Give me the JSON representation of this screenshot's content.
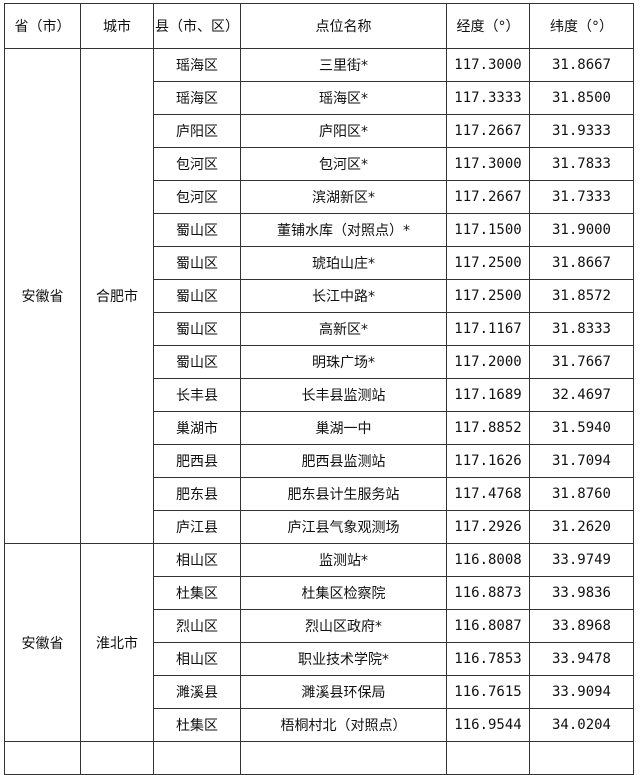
{
  "headers": [
    "省（市）",
    "城市",
    "县（市、区）",
    "点位名称",
    "经度（°）",
    "纬度（°）"
  ],
  "groups": [
    {
      "province": "安徽省",
      "city": "合肥市",
      "rows": [
        [
          "瑶海区",
          "三里街*",
          "117.3000",
          "31.8667"
        ],
        [
          "瑶海区",
          "瑶海区*",
          "117.3333",
          "31.8500"
        ],
        [
          "庐阳区",
          "庐阳区*",
          "117.2667",
          "31.9333"
        ],
        [
          "包河区",
          "包河区*",
          "117.3000",
          "31.7833"
        ],
        [
          "包河区",
          "滨湖新区*",
          "117.2667",
          "31.7333"
        ],
        [
          "蜀山区",
          "董铺水库（对照点）*",
          "117.1500",
          "31.9000"
        ],
        [
          "蜀山区",
          "琥珀山庄*",
          "117.2500",
          "31.8667"
        ],
        [
          "蜀山区",
          "长江中路*",
          "117.2500",
          "31.8572"
        ],
        [
          "蜀山区",
          "高新区*",
          "117.1167",
          "31.8333"
        ],
        [
          "蜀山区",
          "明珠广场*",
          "117.2000",
          "31.7667"
        ],
        [
          "长丰县",
          "长丰县监测站",
          "117.1689",
          "32.4697"
        ],
        [
          "巢湖市",
          "巢湖一中",
          "117.8852",
          "31.5940"
        ],
        [
          "肥西县",
          "肥西县监测站",
          "117.1626",
          "31.7094"
        ],
        [
          "肥东县",
          "肥东县计生服务站",
          "117.4768",
          "31.8760"
        ],
        [
          "庐江县",
          "庐江县气象观测场",
          "117.2926",
          "31.2620"
        ]
      ]
    },
    {
      "province": "安徽省",
      "city": "淮北市",
      "rows": [
        [
          "相山区",
          "监测站*",
          "116.8008",
          "33.9749"
        ],
        [
          "杜集区",
          "杜集区检察院",
          "116.8873",
          "33.9836"
        ],
        [
          "烈山区",
          "烈山区政府*",
          "116.8087",
          "33.8968"
        ],
        [
          "相山区",
          "职业技术学院*",
          "116.7853",
          "33.9478"
        ],
        [
          "濉溪县",
          "濉溪县环保局",
          "116.7615",
          "33.9094"
        ],
        [
          "杜集区",
          "梧桐村北（对照点）",
          "116.9544",
          "34.0204"
        ]
      ]
    }
  ]
}
